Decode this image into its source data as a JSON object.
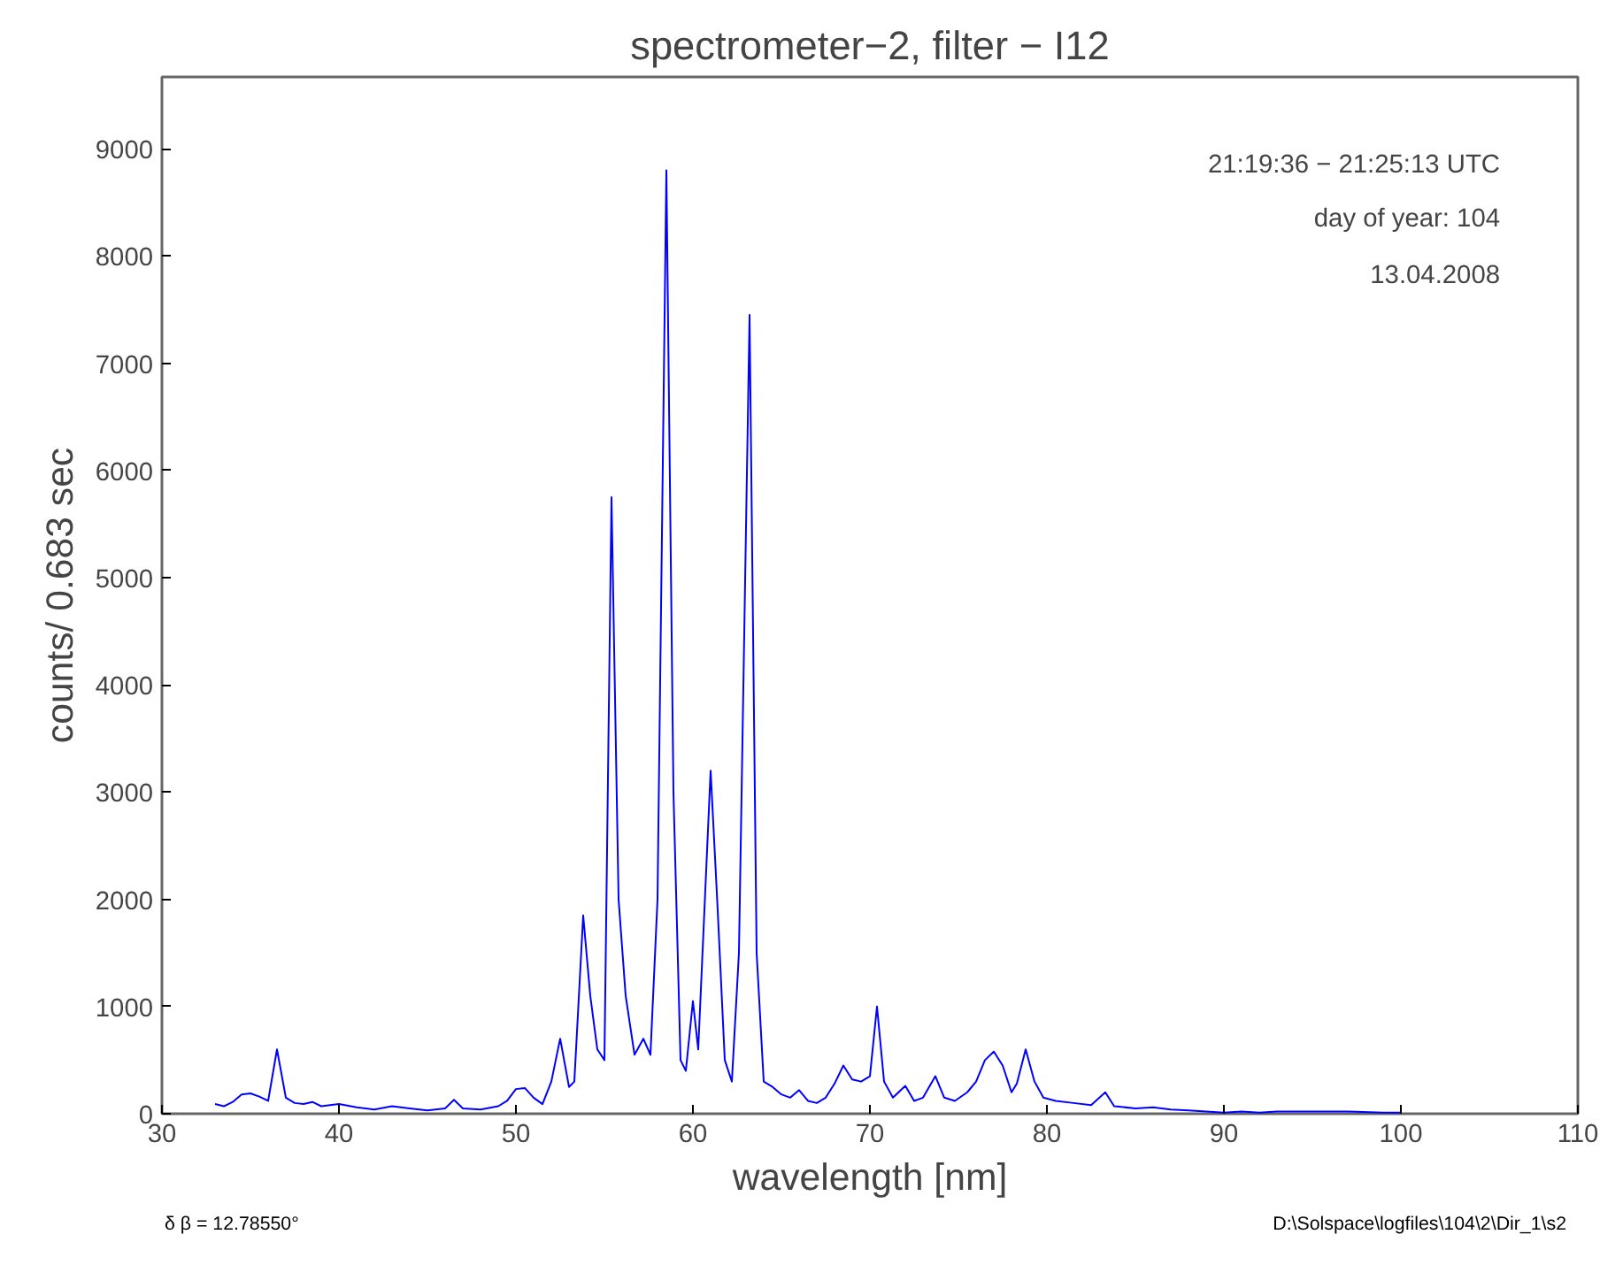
{
  "chart_data": {
    "type": "line",
    "title": "spectrometer−2, filter − I12",
    "xlabel": "wavelength [nm]",
    "ylabel": "counts/ 0.683 sec",
    "x": [
      33.0,
      33.5,
      34.0,
      34.5,
      35.0,
      35.5,
      36.0,
      36.5,
      37.0,
      37.5,
      38.0,
      38.5,
      39.0,
      40.0,
      41,
      42,
      43,
      44,
      45,
      46,
      46.5,
      47,
      48,
      49,
      49.5,
      50,
      50.5,
      51,
      51.5,
      52,
      52.5,
      53,
      53.3,
      53.8,
      54.2,
      54.6,
      55.0,
      55.4,
      55.8,
      56.2,
      56.7,
      57.2,
      57.6,
      58.0,
      58.5,
      58.9,
      59.3,
      59.6,
      60.0,
      60.3,
      61.0,
      61.4,
      61.8,
      62.2,
      62.6,
      63.2,
      63.6,
      64,
      64.5,
      65,
      65.5,
      66,
      66.5,
      67,
      67.5,
      68,
      68.5,
      69,
      69.5,
      70,
      70.4,
      70.8,
      71.3,
      72,
      72.5,
      73,
      73.7,
      74.2,
      74.8,
      75.5,
      76,
      76.5,
      77.0,
      77.5,
      78,
      78.3,
      78.8,
      79.3,
      79.8,
      80.5,
      81.5,
      82.5,
      83.3,
      83.8,
      85,
      86,
      87,
      88,
      89,
      90,
      91,
      92,
      93,
      95,
      97,
      99,
      100
    ],
    "series": [
      {
        "color": "#0000ff",
        "values": [
          90,
          70,
          110,
          180,
          190,
          160,
          120,
          600,
          150,
          100,
          90,
          110,
          70,
          90,
          60,
          40,
          70,
          50,
          30,
          50,
          130,
          50,
          40,
          70,
          120,
          230,
          240,
          150,
          90,
          300,
          700,
          250,
          300,
          1850,
          1100,
          600,
          500,
          5750,
          2000,
          1100,
          550,
          700,
          550,
          2000,
          8800,
          3000,
          500,
          400,
          1050,
          600,
          3200,
          1900,
          500,
          300,
          1500,
          7450,
          1500,
          300,
          250,
          180,
          150,
          220,
          120,
          100,
          150,
          280,
          450,
          320,
          300,
          350,
          1000,
          300,
          150,
          260,
          120,
          150,
          350,
          150,
          120,
          200,
          300,
          500,
          580,
          450,
          200,
          280,
          600,
          300,
          150,
          120,
          100,
          80,
          200,
          70,
          50,
          60,
          40,
          30,
          20,
          10,
          20,
          10,
          20,
          20,
          20,
          10,
          10
        ]
      }
    ],
    "xlim": [
      30,
      110
    ],
    "xticks": [
      30,
      40,
      50,
      60,
      70,
      80,
      90,
      100,
      110
    ],
    "ylim": [
      0,
      9670
    ],
    "yticks": [
      0,
      1000,
      2000,
      3000,
      4000,
      5000,
      6000,
      7000,
      8000,
      9000
    ],
    "grid": false,
    "annotations": [
      "21:19:36 − 21:25:13 UTC",
      "day of year: 104",
      "13.04.2008",
      "δ β = 12.78550°",
      "D:\\Solspace\\logfiles\\104\\2\\Dir_1\\s2"
    ]
  }
}
